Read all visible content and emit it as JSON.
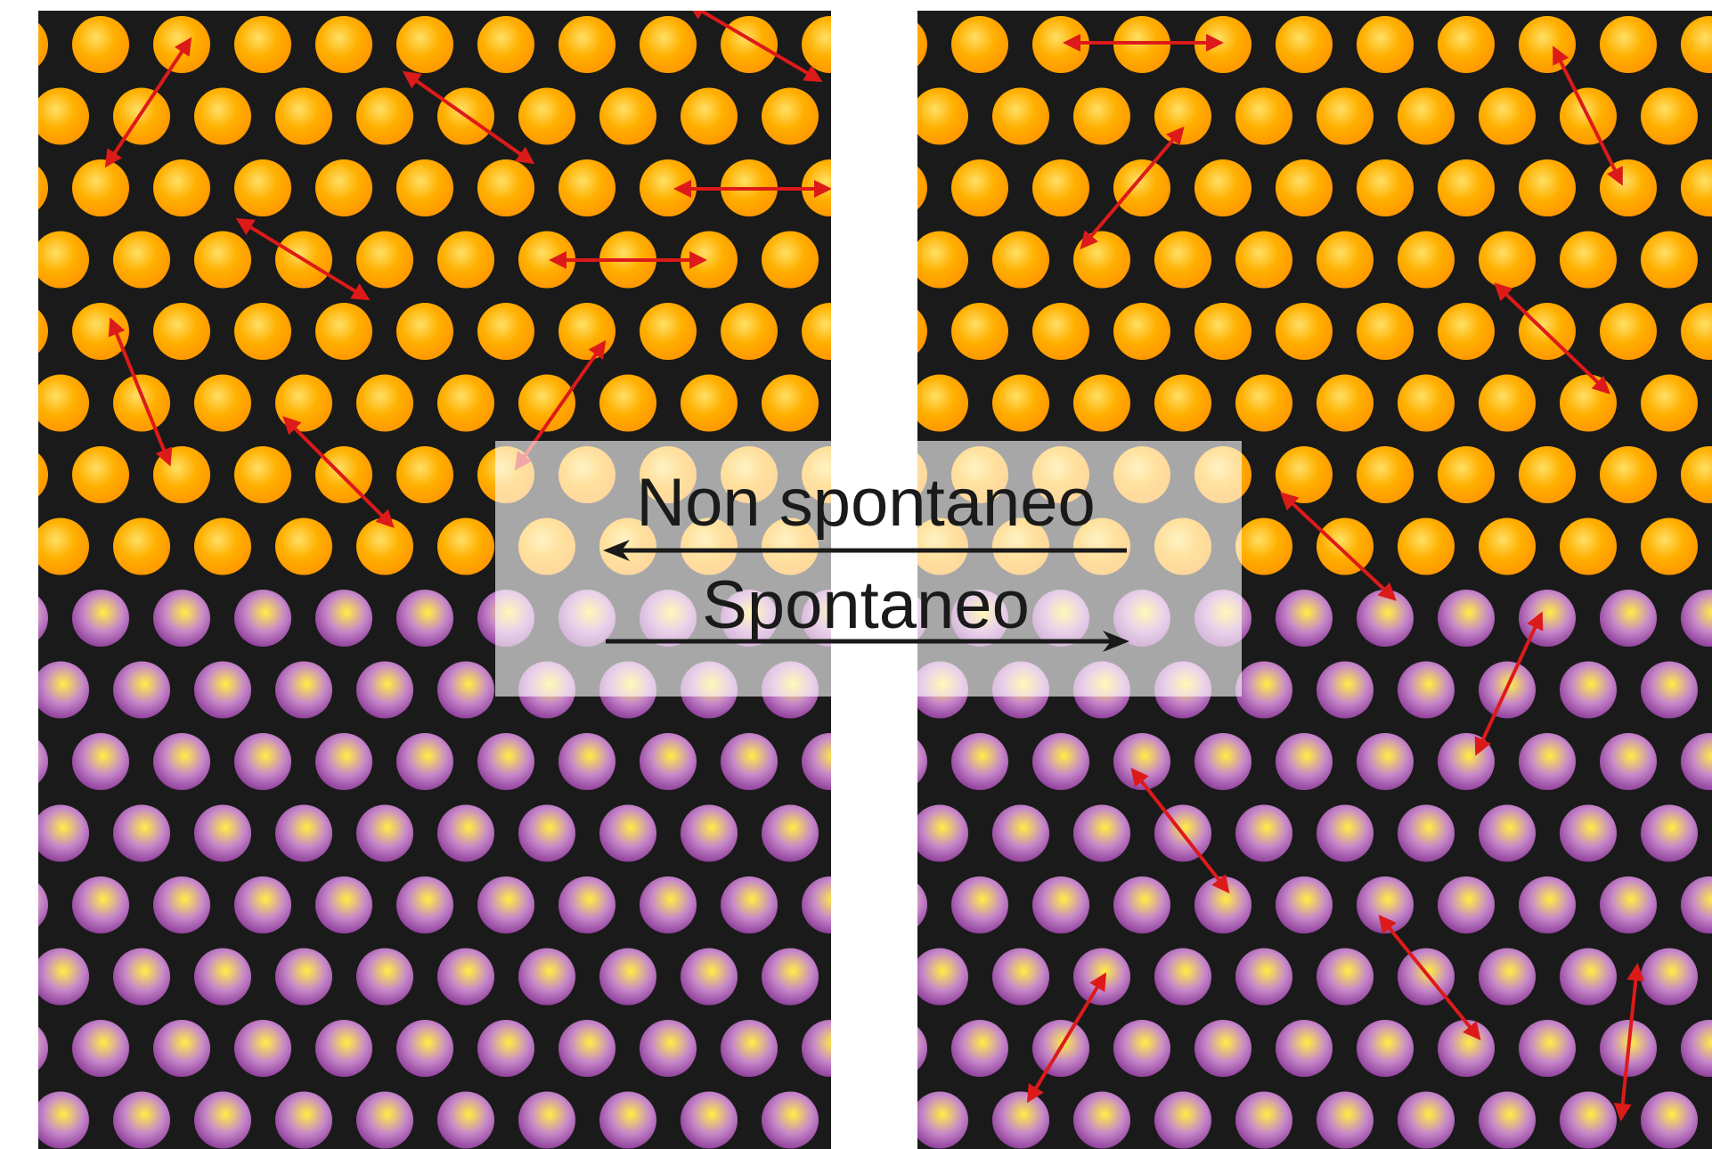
{
  "colors": {
    "background": "#1a1a1a",
    "page": "#ffffff",
    "orange_center": "#ffe066",
    "orange_mid": "#ffb000",
    "orange_edge": "#ff9a00",
    "purple_center": "#ffee44",
    "purple_mid": "#c788c9",
    "purple_edge": "#8e3e9a",
    "arrow": "#dd1a1a",
    "overlay": "#ffffff",
    "label_arrow": "#1a1a1a"
  },
  "panels": [
    {
      "name": "left-panel",
      "top_substance": "orange-particles",
      "bottom_substance": "purple-particles"
    },
    {
      "name": "right-panel",
      "top_substance": "orange-particles",
      "bottom_substance": "purple-particles"
    }
  ],
  "labels": {
    "non_spontaneous": "Non spontaneo",
    "spontaneous": "Spontaneo",
    "non_spontaneous_direction": "right-to-left",
    "spontaneous_direction": "left-to-right"
  }
}
